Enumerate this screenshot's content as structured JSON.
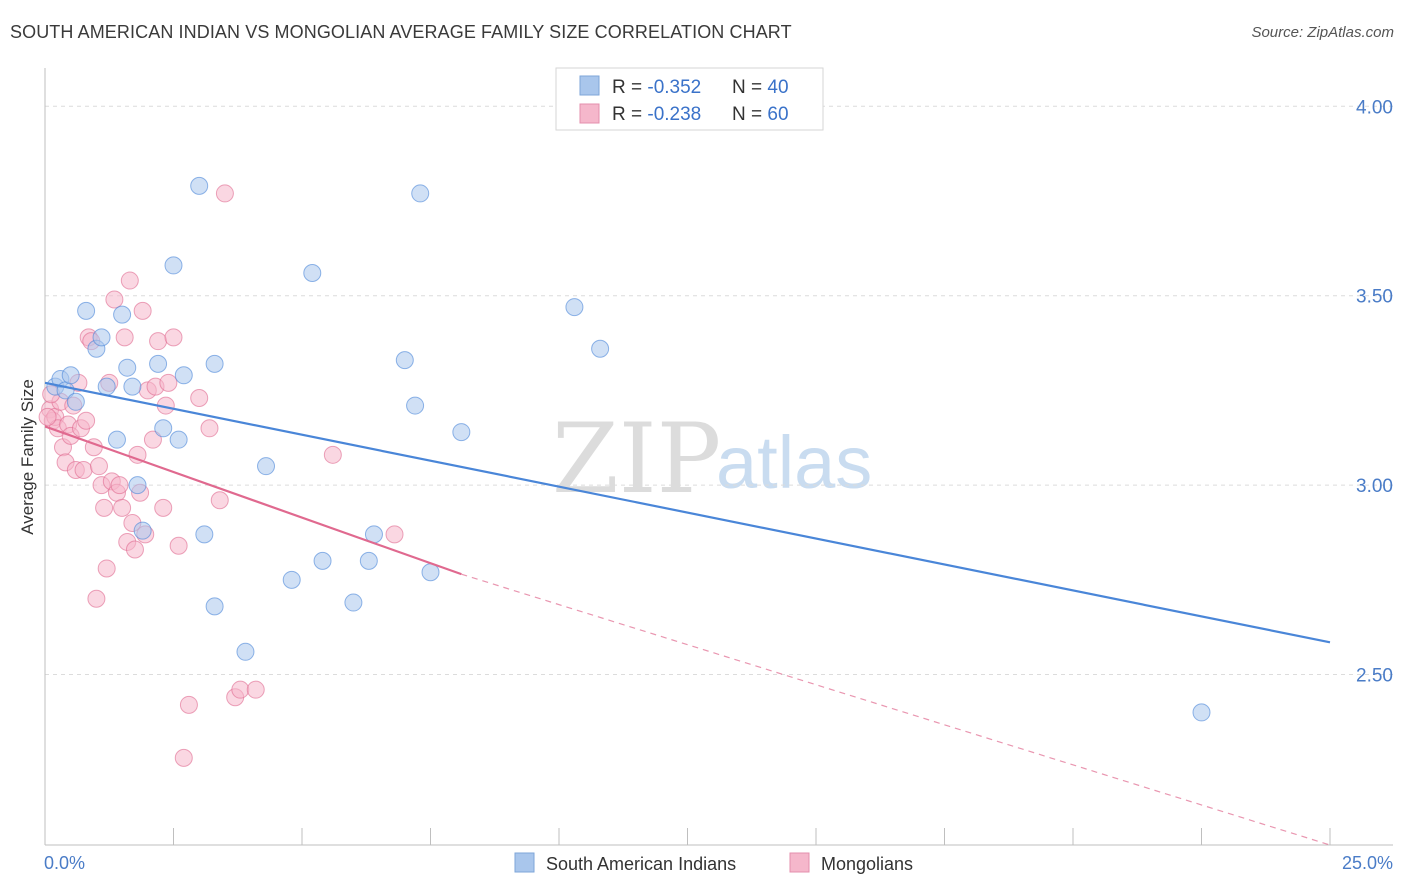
{
  "header": {
    "title": "SOUTH AMERICAN INDIAN VS MONGOLIAN AVERAGE FAMILY SIZE CORRELATION CHART",
    "source": "Source: ZipAtlas.com"
  },
  "watermark": {
    "zip": "ZIP",
    "atlas": "atlas"
  },
  "legend": {
    "rows": [
      {
        "r_label": "R = ",
        "r_value": "-0.352",
        "n_label": "N = ",
        "n_value": "40",
        "color": "#a9c6ec"
      },
      {
        "r_label": "R = ",
        "r_value": "-0.238",
        "n_label": "N = ",
        "n_value": "60",
        "color": "#f5b7cb"
      }
    ]
  },
  "bottom_legend": {
    "items": [
      {
        "label": "South American Indians",
        "color": "#a9c6ec"
      },
      {
        "label": "Mongolians",
        "color": "#f5b7cb"
      }
    ]
  },
  "chart_data": {
    "type": "scatter",
    "title": "SOUTH AMERICAN INDIAN VS MONGOLIAN AVERAGE FAMILY SIZE CORRELATION CHART",
    "xlabel": "",
    "ylabel": "Average Family Size",
    "xlim": [
      0,
      25
    ],
    "ylim": [
      2.05,
      4.08
    ],
    "x_tick_labels": [
      "0.0%",
      "25.0%"
    ],
    "y_ticks": [
      2.5,
      3.0,
      3.5,
      4.0
    ],
    "y_tick_labels": [
      "2.50",
      "3.00",
      "3.50",
      "4.00"
    ],
    "grid": true,
    "legend_position": "top-center",
    "series": [
      {
        "name": "South American Indians",
        "color": "#4a86d8",
        "fill": "#a9c6ec",
        "trend": {
          "x": [
            0.0,
            25.0
          ],
          "y": [
            3.27,
            2.585
          ]
        },
        "points": [
          [
            0.2,
            3.26
          ],
          [
            0.3,
            3.28
          ],
          [
            0.4,
            3.25
          ],
          [
            0.5,
            3.29
          ],
          [
            0.6,
            3.22
          ],
          [
            0.8,
            3.46
          ],
          [
            1.0,
            3.36
          ],
          [
            1.1,
            3.39
          ],
          [
            1.2,
            3.26
          ],
          [
            1.4,
            3.12
          ],
          [
            1.5,
            3.45
          ],
          [
            1.6,
            3.31
          ],
          [
            1.7,
            3.26
          ],
          [
            1.8,
            3.0
          ],
          [
            1.9,
            2.88
          ],
          [
            2.2,
            3.32
          ],
          [
            2.3,
            3.15
          ],
          [
            2.5,
            3.58
          ],
          [
            2.6,
            3.12
          ],
          [
            2.7,
            3.29
          ],
          [
            3.0,
            3.79
          ],
          [
            3.1,
            2.87
          ],
          [
            3.3,
            3.32
          ],
          [
            3.3,
            2.68
          ],
          [
            3.9,
            2.56
          ],
          [
            4.3,
            3.05
          ],
          [
            4.8,
            2.75
          ],
          [
            5.2,
            3.56
          ],
          [
            5.4,
            2.8
          ],
          [
            6.0,
            2.69
          ],
          [
            6.3,
            2.8
          ],
          [
            6.4,
            2.87
          ],
          [
            7.0,
            3.33
          ],
          [
            7.2,
            3.21
          ],
          [
            7.3,
            3.77
          ],
          [
            7.5,
            2.77
          ],
          [
            8.1,
            3.14
          ],
          [
            10.3,
            3.47
          ],
          [
            10.8,
            3.36
          ],
          [
            22.5,
            2.4
          ]
        ]
      },
      {
        "name": "Mongolians",
        "color": "#e0698f",
        "fill": "#f5b7cb",
        "trend": {
          "x": [
            0.0,
            8.1
          ],
          "y": [
            3.155,
            2.765
          ]
        },
        "trend_extension": {
          "x": [
            8.1,
            25.0
          ],
          "y": [
            2.765,
            2.05
          ]
        },
        "points": [
          [
            0.1,
            3.2
          ],
          [
            0.15,
            3.17
          ],
          [
            0.2,
            3.18
          ],
          [
            0.25,
            3.15
          ],
          [
            0.3,
            3.22
          ],
          [
            0.35,
            3.1
          ],
          [
            0.4,
            3.06
          ],
          [
            0.45,
            3.16
          ],
          [
            0.5,
            3.13
          ],
          [
            0.55,
            3.21
          ],
          [
            0.6,
            3.04
          ],
          [
            0.65,
            3.27
          ],
          [
            0.7,
            3.15
          ],
          [
            0.75,
            3.04
          ],
          [
            0.8,
            3.17
          ],
          [
            0.85,
            3.39
          ],
          [
            0.9,
            3.38
          ],
          [
            0.95,
            3.1
          ],
          [
            1.0,
            2.7
          ],
          [
            1.05,
            3.05
          ],
          [
            1.1,
            3.0
          ],
          [
            1.15,
            2.94
          ],
          [
            1.2,
            2.78
          ],
          [
            1.25,
            3.27
          ],
          [
            1.3,
            3.01
          ],
          [
            1.35,
            3.49
          ],
          [
            1.4,
            2.98
          ],
          [
            1.45,
            3.0
          ],
          [
            1.5,
            2.94
          ],
          [
            1.55,
            3.39
          ],
          [
            1.6,
            2.85
          ],
          [
            1.65,
            3.54
          ],
          [
            1.7,
            2.9
          ],
          [
            1.75,
            2.83
          ],
          [
            1.8,
            3.08
          ],
          [
            1.85,
            2.98
          ],
          [
            1.9,
            3.46
          ],
          [
            1.95,
            2.87
          ],
          [
            2.0,
            3.25
          ],
          [
            2.1,
            3.12
          ],
          [
            2.15,
            3.26
          ],
          [
            2.2,
            3.38
          ],
          [
            2.3,
            2.94
          ],
          [
            2.35,
            3.21
          ],
          [
            2.4,
            3.27
          ],
          [
            2.5,
            3.39
          ],
          [
            2.6,
            2.84
          ],
          [
            2.7,
            2.28
          ],
          [
            2.8,
            2.42
          ],
          [
            3.0,
            3.23
          ],
          [
            3.2,
            3.15
          ],
          [
            3.4,
            2.96
          ],
          [
            3.5,
            3.77
          ],
          [
            3.7,
            2.44
          ],
          [
            3.8,
            2.46
          ],
          [
            4.1,
            2.46
          ],
          [
            5.6,
            3.08
          ],
          [
            6.8,
            2.87
          ],
          [
            0.05,
            3.18
          ],
          [
            0.12,
            3.24
          ]
        ]
      }
    ]
  }
}
